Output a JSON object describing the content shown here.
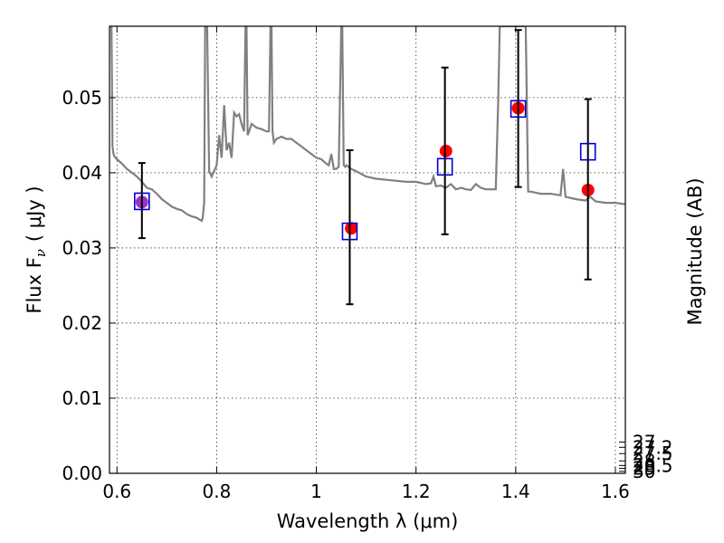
{
  "chart_data": {
    "type": "scatter",
    "xlabel": "Wavelength  λ (μm)",
    "ylabel": "Flux  F",
    "ylabel_sub": "ν",
    "ylabel_unit": "( μJy )",
    "y2label": "Magnitude (AB)",
    "xlim": [
      0.585,
      1.62
    ],
    "ylim": [
      0.0,
      0.0595
    ],
    "x_ticks": [
      0.6,
      0.8,
      1.0,
      1.2,
      1.4,
      1.6
    ],
    "x_tick_labels": [
      "0.6",
      "0.8",
      "1",
      "1.2",
      "1.4",
      "1.6"
    ],
    "y_ticks": [
      0.0,
      0.01,
      0.02,
      0.03,
      0.04,
      0.05
    ],
    "y_tick_labels": [
      "0.00",
      "0.01",
      "0.02",
      "0.03",
      "0.04",
      "0.05"
    ],
    "y2_ticks": [
      27,
      27.2,
      27.5,
      28,
      28.5,
      29,
      30
    ],
    "y2_tick_labels": [
      "27",
      "27.2",
      "27.5",
      "28",
      "28.5",
      "29",
      "30"
    ],
    "grid": true,
    "colors": {
      "model": "#808080",
      "observed": "#ff0000",
      "model_band": "#0000cc",
      "overlap": "#9933cc",
      "errorbar": "#000000"
    },
    "model_spectrum": {
      "x": [
        0.585,
        0.589,
        0.591,
        0.593,
        0.595,
        0.597,
        0.6,
        0.61,
        0.62,
        0.63,
        0.64,
        0.65,
        0.66,
        0.67,
        0.68,
        0.69,
        0.7,
        0.71,
        0.72,
        0.73,
        0.74,
        0.75,
        0.76,
        0.765,
        0.77,
        0.772,
        0.775,
        0.777,
        0.781,
        0.785,
        0.79,
        0.8,
        0.805,
        0.81,
        0.815,
        0.82,
        0.825,
        0.83,
        0.835,
        0.84,
        0.845,
        0.85,
        0.855,
        0.858,
        0.86,
        0.862,
        0.865,
        0.87,
        0.88,
        0.89,
        0.9,
        0.905,
        0.908,
        0.91,
        0.912,
        0.915,
        0.92,
        0.93,
        0.94,
        0.95,
        0.96,
        0.97,
        0.98,
        0.99,
        1.0,
        1.01,
        1.02,
        1.025,
        1.03,
        1.035,
        1.04,
        1.045,
        1.05,
        1.052,
        1.055,
        1.058,
        1.06,
        1.07,
        1.08,
        1.1,
        1.12,
        1.15,
        1.18,
        1.2,
        1.22,
        1.23,
        1.235,
        1.24,
        1.25,
        1.26,
        1.27,
        1.28,
        1.29,
        1.3,
        1.31,
        1.32,
        1.33,
        1.34,
        1.35,
        1.36,
        1.365,
        1.368,
        1.4,
        1.42,
        1.425,
        1.43,
        1.45,
        1.47,
        1.49,
        1.495,
        1.5,
        1.52,
        1.54,
        1.55,
        1.56,
        1.58,
        1.6,
        1.62
      ],
      "y": [
        0.0595,
        0.0595,
        0.0435,
        0.0425,
        0.0422,
        0.042,
        0.0418,
        0.0412,
        0.0405,
        0.04,
        0.0395,
        0.0388,
        0.038,
        0.0378,
        0.0372,
        0.0365,
        0.036,
        0.0355,
        0.0352,
        0.035,
        0.0345,
        0.0342,
        0.034,
        0.0338,
        0.0336,
        0.034,
        0.036,
        0.0595,
        0.0595,
        0.0402,
        0.0395,
        0.041,
        0.045,
        0.042,
        0.049,
        0.043,
        0.044,
        0.042,
        0.048,
        0.0475,
        0.0478,
        0.0465,
        0.0455,
        0.0595,
        0.0595,
        0.045,
        0.0455,
        0.0465,
        0.046,
        0.0458,
        0.0455,
        0.0455,
        0.0595,
        0.0595,
        0.0455,
        0.044,
        0.0445,
        0.0448,
        0.0445,
        0.0445,
        0.044,
        0.0435,
        0.043,
        0.0425,
        0.042,
        0.0418,
        0.0412,
        0.041,
        0.0425,
        0.0405,
        0.0405,
        0.0408,
        0.0595,
        0.0595,
        0.041,
        0.0408,
        0.041,
        0.0405,
        0.0402,
        0.0395,
        0.0392,
        0.039,
        0.0388,
        0.0388,
        0.0385,
        0.0386,
        0.0395,
        0.0382,
        0.0383,
        0.038,
        0.0385,
        0.0378,
        0.038,
        0.0378,
        0.0377,
        0.0385,
        0.038,
        0.0378,
        0.0378,
        0.0378,
        0.05,
        0.0595,
        0.0595,
        0.0595,
        0.0375,
        0.0375,
        0.0372,
        0.0372,
        0.037,
        0.0405,
        0.0368,
        0.0365,
        0.0363,
        0.0368,
        0.0362,
        0.036,
        0.036,
        0.0358
      ]
    },
    "series": [
      {
        "name": "",
        "x": [
          0.65,
          1.07,
          1.26,
          1.405,
          1.545
        ],
        "y": [
          0.0361,
          0.0326,
          0.0429,
          0.0486,
          0.0377
        ]
      },
      {
        "name": "",
        "x": [
          0.65,
          1.067,
          1.258,
          1.405,
          1.545
        ],
        "y": [
          0.0362,
          0.0322,
          0.0408,
          0.0485,
          0.0428
        ],
        "yerr_low": [
          0.0313,
          0.0225,
          0.0318,
          0.0381,
          0.0258
        ],
        "yerr_high": [
          0.0413,
          0.043,
          0.054,
          0.059,
          0.0498
        ]
      }
    ]
  }
}
